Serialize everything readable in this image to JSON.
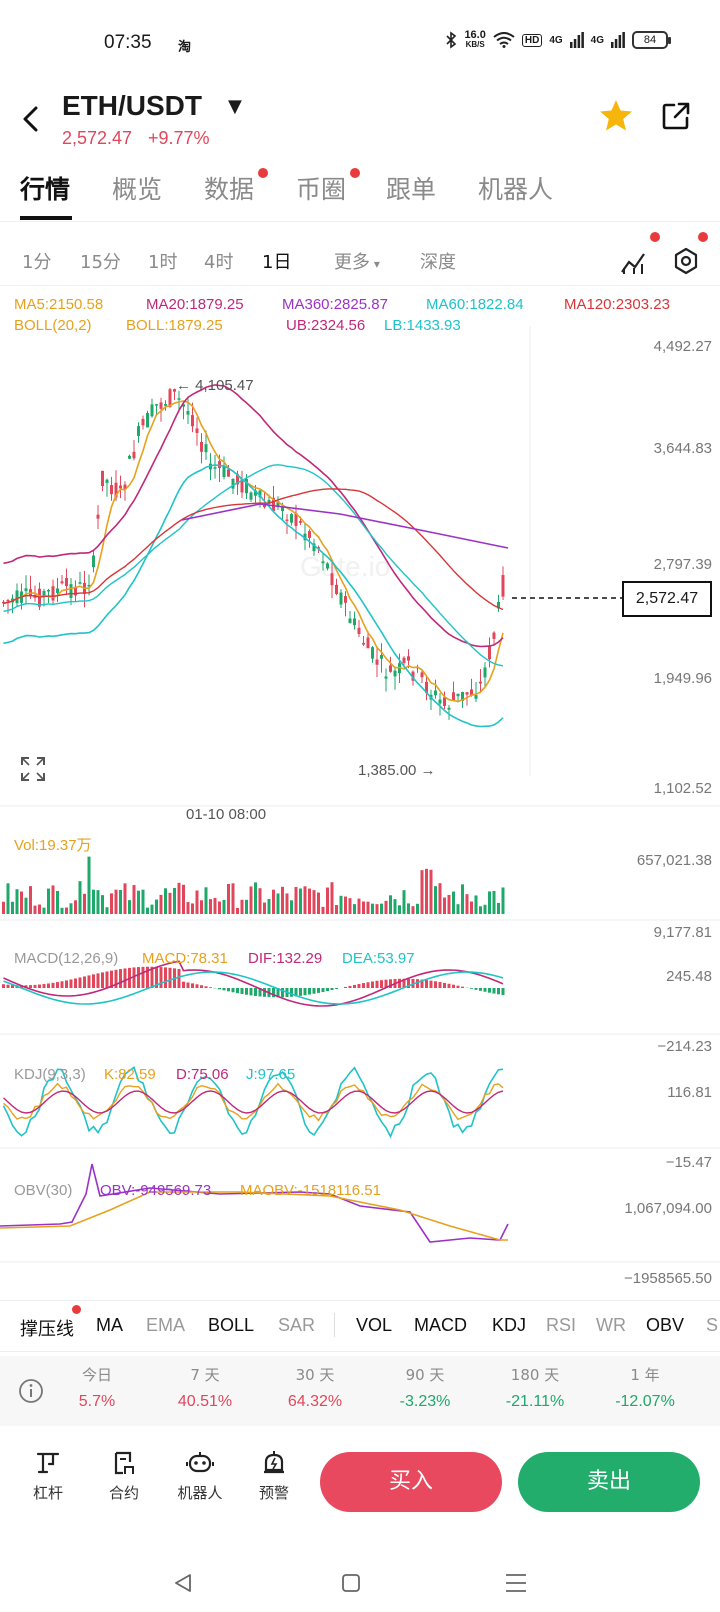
{
  "status": {
    "time": "07:35",
    "app_icon": "淘",
    "net_speed_value": "16.0",
    "net_speed_unit": "KB/S",
    "hd_badge": "HD",
    "sig1": "4G",
    "sig2": "4G",
    "battery": "84"
  },
  "header": {
    "pair": "ETH/USDT",
    "price": "2,572.47",
    "change": "+9.77%"
  },
  "tabs": [
    "行情",
    "概览",
    "数据",
    "币圈",
    "跟单",
    "机器人"
  ],
  "timeframes": [
    "1分",
    "15分",
    "1时",
    "4时",
    "1日",
    "更多",
    "深度"
  ],
  "ma_legend": {
    "ma5": "MA5:2150.58",
    "ma20": "MA20:1879.25",
    "ma360": "MA360:2825.87",
    "ma60": "MA60:1822.84",
    "ma120": "MA120:2303.23",
    "boll_param": "BOLL(20,2)",
    "boll": "BOLL:1879.25",
    "ub": "UB:2324.56",
    "lb": "LB:1433.93"
  },
  "main_chart": {
    "y_ticks": [
      "4,492.27",
      "3,644.83",
      "2,797.39",
      "1,949.96",
      "1,102.52"
    ],
    "high_label": "4,105.47",
    "low_label": "1,385.00",
    "current_price": "2,572.47",
    "x_label": "01-10 08:00",
    "watermark": "Gate.io"
  },
  "vol": {
    "label": "Vol:19.37万",
    "max": "657,021.38",
    "min": "9,177.81"
  },
  "macd": {
    "param": "MACD(12,26,9)",
    "macd": "MACD:78.31",
    "dif": "DIF:132.29",
    "dea": "DEA:53.97",
    "max": "245.48",
    "min": "−214.23"
  },
  "kdj": {
    "param": "KDJ(9,3,3)",
    "k": "K:82.59",
    "d": "D:75.06",
    "j": "J:97.65",
    "max": "116.81",
    "min": "−15.47"
  },
  "obv": {
    "param": "OBV(30)",
    "obv": "OBV:-949569.73",
    "maobv": "MAOBV:-1518116.51",
    "max": "1,067,094.00",
    "min": "−1958565.50"
  },
  "indicators": [
    "撑压线",
    "MA",
    "EMA",
    "BOLL",
    "SAR",
    "VOL",
    "MACD",
    "KDJ",
    "RSI",
    "WR",
    "OBV",
    "S"
  ],
  "performance": [
    {
      "label": "今日",
      "value": "5.7%",
      "dir": "up"
    },
    {
      "label": "7 天",
      "value": "40.51%",
      "dir": "up"
    },
    {
      "label": "30 天",
      "value": "64.32%",
      "dir": "up"
    },
    {
      "label": "90 天",
      "value": "-3.23%",
      "dir": "down"
    },
    {
      "label": "180 天",
      "value": "-21.11%",
      "dir": "down"
    },
    {
      "label": "1 年",
      "value": "-12.07%",
      "dir": "down"
    }
  ],
  "actions": {
    "leverage": "杠杆",
    "contract": "合约",
    "robot": "机器人",
    "alert": "预警",
    "buy": "买入",
    "sell": "卖出"
  },
  "colors": {
    "up": "#e0475b",
    "down": "#1ea86a",
    "ma5": "#e6a11e",
    "ma20": "#c0287a",
    "ma360": "#9b32c8",
    "ma60": "#1fc3c8",
    "ma120": "#d8353a"
  }
}
